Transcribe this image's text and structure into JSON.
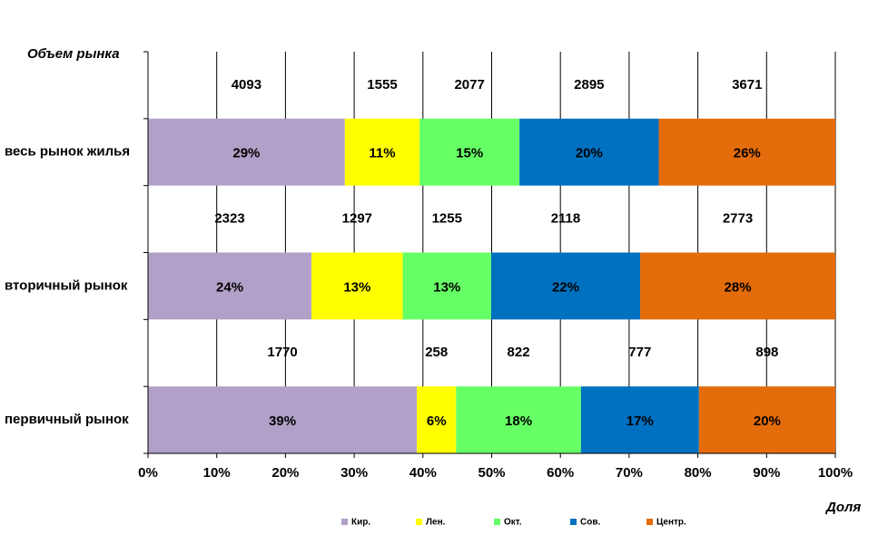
{
  "chart_data": {
    "type": "stacked_bar_100",
    "row_header": "Объем рынка",
    "x_label": "Доля",
    "categories": [
      "весь рынок жилья",
      "вторичный рынок",
      "первичный рынок"
    ],
    "series": [
      {
        "name": "Кир.",
        "color": "#b1a0c7",
        "values": [
          28.64,
          23.79,
          39.12
        ],
        "value_labels": [
          "29%",
          "24%",
          "39%"
        ],
        "volumes": [
          4093,
          2323,
          1770
        ]
      },
      {
        "name": "Лен.",
        "color": "#ffff00",
        "values": [
          10.88,
          13.28,
          5.7
        ],
        "value_labels": [
          "11%",
          "13%",
          "6%"
        ],
        "volumes": [
          1555,
          1297,
          258
        ]
      },
      {
        "name": "Окт.",
        "color": "#66ff66",
        "values": [
          14.53,
          12.85,
          18.17
        ],
        "value_labels": [
          "15%",
          "13%",
          "18%"
        ],
        "volumes": [
          2077,
          1255,
          822
        ]
      },
      {
        "name": "Сов.",
        "color": "#0070c0",
        "values": [
          20.26,
          21.69,
          17.17
        ],
        "value_labels": [
          "20%",
          "22%",
          "17%"
        ],
        "volumes": [
          2895,
          2118,
          777
        ]
      },
      {
        "name": "Центр.",
        "color": "#e46c0a",
        "values": [
          25.69,
          28.39,
          19.84
        ],
        "value_labels": [
          "26%",
          "28%",
          "20%"
        ],
        "volumes": [
          3671,
          2773,
          898
        ]
      }
    ],
    "xlim": [
      0,
      100
    ],
    "xticks": [
      {
        "value": 0,
        "label": "0%"
      },
      {
        "value": 10,
        "label": "10%"
      },
      {
        "value": 20,
        "label": "20%"
      },
      {
        "value": 30,
        "label": "30%"
      },
      {
        "value": 40,
        "label": "40%"
      },
      {
        "value": 50,
        "label": "50%"
      },
      {
        "value": 60,
        "label": "60%"
      },
      {
        "value": 70,
        "label": "70%"
      },
      {
        "value": 80,
        "label": "80%"
      },
      {
        "value": 90,
        "label": "90%"
      },
      {
        "value": 100,
        "label": "100%"
      }
    ],
    "grid": true
  }
}
